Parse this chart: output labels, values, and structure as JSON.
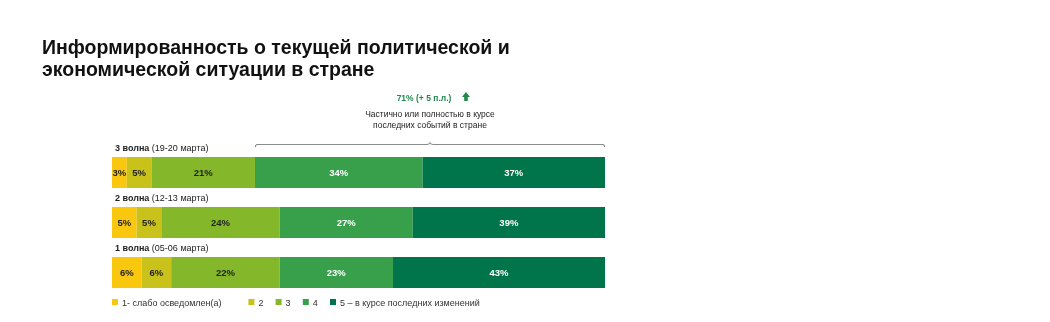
{
  "chart_data": {
    "type": "bar",
    "orientation": "horizontal",
    "stacked": true,
    "title": "Информированность о текущей политической и экономической ситуации в стране",
    "categories": [
      "3 волна (19-20 марта)",
      "2 волна (12-13 марта)",
      "1 волна (05-06 марта)"
    ],
    "series": [
      {
        "name": "1- слабо осведомлен(а)",
        "color": "#f9c80e",
        "values": [
          3,
          5,
          6
        ],
        "value_labels": [
          "3%",
          "5%",
          "6%"
        ]
      },
      {
        "name": "2",
        "color": "#c8c21a",
        "values": [
          5,
          5,
          6
        ],
        "value_labels": [
          "5%",
          "5%",
          "6%"
        ]
      },
      {
        "name": "3",
        "color": "#84b82a",
        "values": [
          21,
          24,
          22
        ],
        "value_labels": [
          "21%",
          "24%",
          "22%"
        ]
      },
      {
        "name": "4",
        "color": "#38a04a",
        "values": [
          34,
          27,
          23
        ],
        "value_labels": [
          "34%",
          "27%",
          "23%"
        ]
      },
      {
        "name": "5 – в курсе последних изменений",
        "color": "#00744a",
        "values": [
          37,
          39,
          43
        ],
        "value_labels": [
          "37%",
          "39%",
          "43%"
        ]
      }
    ],
    "xlim": [
      0,
      100
    ],
    "legend": "bottom",
    "annotations": [
      "71% (+ 5 п.л.)",
      "Частично или полностью в курсе последних событий в стране"
    ]
  }
}
